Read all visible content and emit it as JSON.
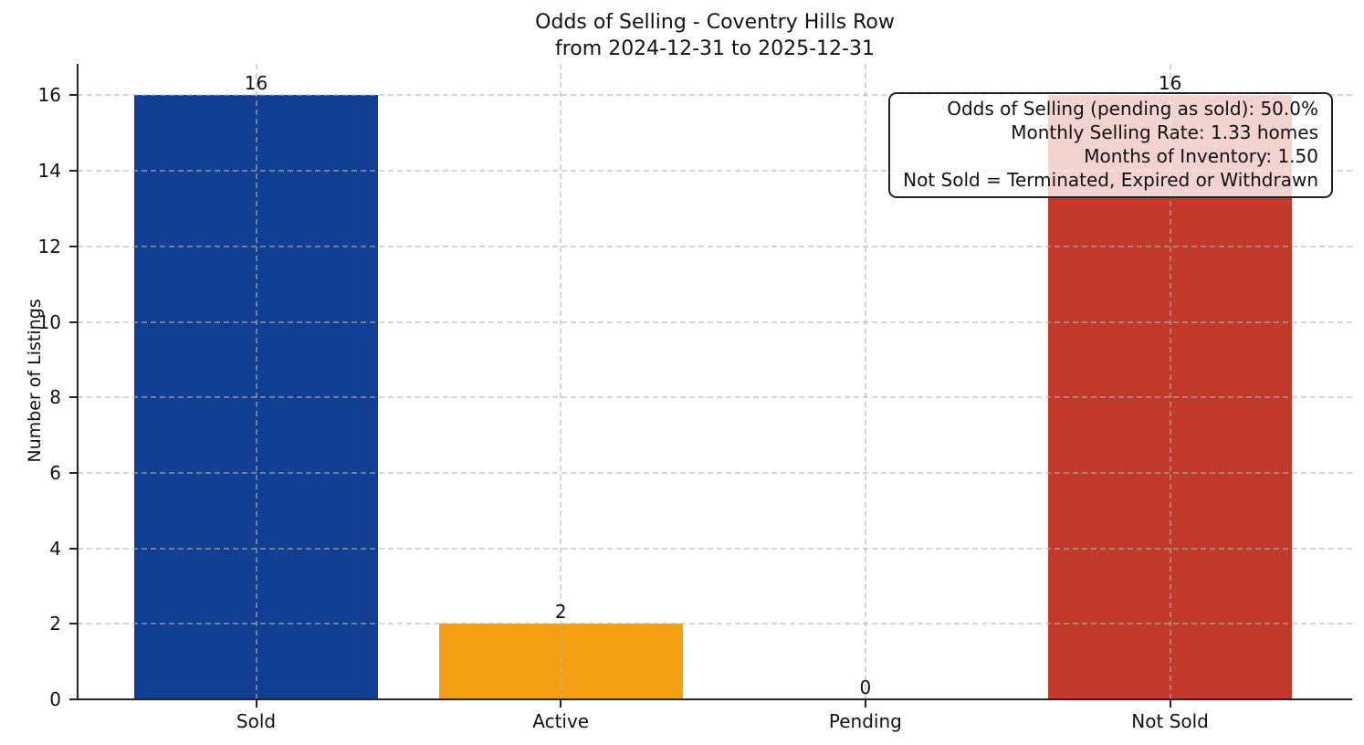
{
  "title": {
    "line1": "Odds of Selling - Coventry Hills Row",
    "line2": "from 2024-12-31 to 2025-12-31"
  },
  "annotation": {
    "lines": [
      "Odds of Selling (pending as sold): 50.0%",
      "Monthly Selling Rate: 1.33 homes",
      "Months of Inventory: 1.50",
      "Not Sold = Terminated, Expired or Withdrawn"
    ]
  },
  "chart_data": {
    "type": "bar",
    "title": "Odds of Selling - Coventry Hills Row\nfrom 2024-12-31 to 2025-12-31",
    "categories": [
      "Sold",
      "Active",
      "Pending",
      "Not Sold"
    ],
    "values": [
      16,
      2,
      0,
      16
    ],
    "bar_colors": [
      "#123e93",
      "#f4a012",
      "#808080",
      "#c23a2b"
    ],
    "value_labels": [
      "16",
      "2",
      "0",
      "16"
    ],
    "xlabel": "",
    "ylabel": "Number of Listings",
    "yticks": [
      0,
      2,
      4,
      6,
      8,
      10,
      12,
      14,
      16
    ],
    "ylim": [
      0,
      16.8
    ],
    "grid": "dashed, both axes, drawn above bars",
    "legend": "none",
    "annotation_box_position": "top-right",
    "stats": {
      "odds_of_selling_pct": 50.0,
      "monthly_selling_rate_homes": 1.33,
      "months_of_inventory": 1.5
    }
  }
}
